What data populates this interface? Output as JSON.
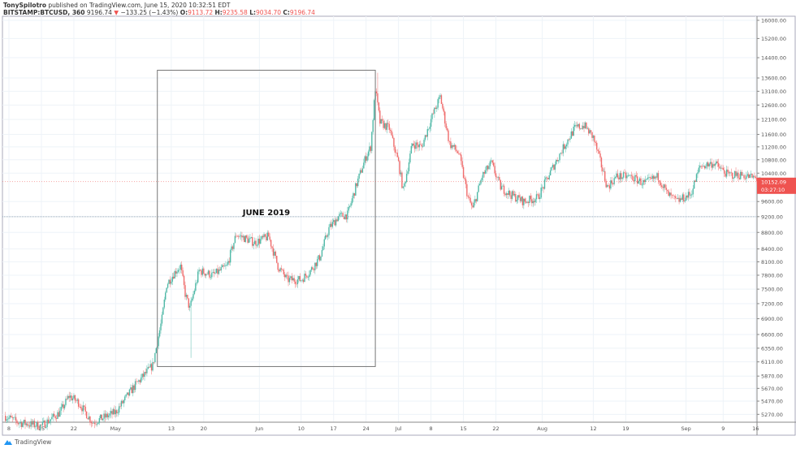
{
  "header": {
    "author": "TonySpilotro",
    "published": "published on TradingView.com, June 15, 2020 10:32:51 EDT",
    "symbol": "BITSTAMP:BTCUSD, 360",
    "last": "9196.74",
    "change": "−133.25 (−1.43%)",
    "open_label": "O:",
    "open": "9113.72",
    "high_label": "H:",
    "high": "9235.58",
    "low_label": "L:",
    "low": "9034.70",
    "close_label": "C:",
    "close": "9196.74"
  },
  "footer": {
    "brand": "TradingView"
  },
  "colors": {
    "up": "#4fb8a6",
    "down": "#ef6b6b",
    "price_tag": "#ef5350",
    "grid": "#eef3f8"
  },
  "chart_data": {
    "type": "candlestick",
    "scale": "log",
    "grid": true,
    "ylim": [
      5150,
      16300
    ],
    "xlim": [
      "2019-04-07",
      "2019-09-18"
    ],
    "y_ticks": [
      16000,
      15200,
      14400,
      13600,
      13100,
      12600,
      12100,
      11600,
      11200,
      10800,
      10400,
      9600,
      9200,
      8800,
      8400,
      8100,
      7800,
      7500,
      7200,
      6900,
      6600,
      6350,
      6110,
      5870,
      5670,
      5470,
      5270
    ],
    "y_tick_labels": [
      "16000.00",
      "15200.00",
      "14400.00",
      "13600.00",
      "13100.00",
      "12600.00",
      "12100.00",
      "11600.00",
      "11200.00",
      "10800.00",
      "10400.00",
      "9600.00",
      "9200.00",
      "8800.00",
      "8400.00",
      "8100.00",
      "7800.00",
      "7500.00",
      "7200.00",
      "6900.00",
      "6600.00",
      "6350.00",
      "6110.00",
      "5870.00",
      "5670.00",
      "5470.00",
      "5270.00"
    ],
    "x_ticks": [
      {
        "date": "2019-04-08",
        "label": "8"
      },
      {
        "date": "2019-04-15",
        "label": "15"
      },
      {
        "date": "2019-04-22",
        "label": "22"
      },
      {
        "date": "2019-05-01",
        "label": "May"
      },
      {
        "date": "2019-05-13",
        "label": "13"
      },
      {
        "date": "2019-05-20",
        "label": "20"
      },
      {
        "date": "2019-06-01",
        "label": "Jun"
      },
      {
        "date": "2019-06-10",
        "label": "10"
      },
      {
        "date": "2019-06-17",
        "label": "17"
      },
      {
        "date": "2019-06-24",
        "label": "24"
      },
      {
        "date": "2019-07-01",
        "label": "Jul"
      },
      {
        "date": "2019-07-08",
        "label": "8"
      },
      {
        "date": "2019-07-15",
        "label": "15"
      },
      {
        "date": "2019-07-22",
        "label": "22"
      },
      {
        "date": "2019-08-01",
        "label": "Aug"
      },
      {
        "date": "2019-08-12",
        "label": "12"
      },
      {
        "date": "2019-08-19",
        "label": "19"
      },
      {
        "date": "2019-09-01",
        "label": "Sep"
      },
      {
        "date": "2019-09-09",
        "label": "9"
      },
      {
        "date": "2019-09-16",
        "label": "16"
      }
    ],
    "price_path": [
      [
        "2019-04-07",
        5250
      ],
      [
        "2019-04-10",
        5150
      ],
      [
        "2019-04-15",
        5100
      ],
      [
        "2019-04-19",
        5300
      ],
      [
        "2019-04-21",
        5550
      ],
      [
        "2019-04-23",
        5450
      ],
      [
        "2019-04-26",
        5150
      ],
      [
        "2019-05-01",
        5300
      ],
      [
        "2019-05-05",
        5700
      ],
      [
        "2019-05-09",
        6050
      ],
      [
        "2019-05-11",
        6900
      ],
      [
        "2019-05-12",
        7600
      ],
      [
        "2019-05-14",
        7900
      ],
      [
        "2019-05-15",
        8000
      ],
      [
        "2019-05-16",
        7400
      ],
      [
        "2019-05-17",
        7100
      ],
      [
        "2019-05-19",
        7900
      ],
      [
        "2019-05-22",
        7800
      ],
      [
        "2019-05-25",
        8000
      ],
      [
        "2019-05-27",
        8750
      ],
      [
        "2019-05-31",
        8550
      ],
      [
        "2019-06-03",
        8700
      ],
      [
        "2019-06-05",
        8000
      ],
      [
        "2019-06-07",
        7700
      ],
      [
        "2019-06-10",
        7700
      ],
      [
        "2019-06-12",
        7900
      ],
      [
        "2019-06-14",
        8200
      ],
      [
        "2019-06-16",
        8900
      ],
      [
        "2019-06-18",
        9200
      ],
      [
        "2019-06-20",
        9250
      ],
      [
        "2019-06-22",
        10100
      ],
      [
        "2019-06-24",
        10900
      ],
      [
        "2019-06-25",
        11200
      ],
      [
        "2019-06-26",
        13200
      ],
      [
        "2019-06-27",
        12000
      ],
      [
        "2019-06-29",
        11800
      ],
      [
        "2019-07-01",
        10700
      ],
      [
        "2019-07-02",
        9900
      ],
      [
        "2019-07-04",
        11300
      ],
      [
        "2019-07-06",
        11200
      ],
      [
        "2019-07-08",
        12100
      ],
      [
        "2019-07-10",
        12900
      ],
      [
        "2019-07-12",
        11300
      ],
      [
        "2019-07-14",
        11000
      ],
      [
        "2019-07-16",
        9700
      ],
      [
        "2019-07-17",
        9400
      ],
      [
        "2019-07-19",
        10300
      ],
      [
        "2019-07-21",
        10700
      ],
      [
        "2019-07-23",
        10000
      ],
      [
        "2019-07-25",
        9800
      ],
      [
        "2019-07-28",
        9600
      ],
      [
        "2019-07-31",
        9700
      ],
      [
        "2019-08-03",
        10500
      ],
      [
        "2019-08-06",
        11300
      ],
      [
        "2019-08-08",
        11800
      ],
      [
        "2019-08-10",
        11900
      ],
      [
        "2019-08-12",
        11500
      ],
      [
        "2019-08-14",
        10500
      ],
      [
        "2019-08-15",
        10000
      ],
      [
        "2019-08-17",
        10300
      ],
      [
        "2019-08-20",
        10300
      ],
      [
        "2019-08-23",
        10100
      ],
      [
        "2019-08-26",
        10300
      ],
      [
        "2019-08-28",
        9800
      ],
      [
        "2019-08-30",
        9600
      ],
      [
        "2019-09-02",
        9800
      ],
      [
        "2019-09-04",
        10600
      ],
      [
        "2019-09-07",
        10700
      ],
      [
        "2019-09-10",
        10350
      ],
      [
        "2019-09-13",
        10350
      ],
      [
        "2019-09-16",
        10250
      ],
      [
        "2019-09-17",
        10152
      ]
    ],
    "last_price_label": "10152.09",
    "countdown_label": "03:27:10",
    "crosshair_price": 9200,
    "annotations": [
      {
        "type": "rectangle",
        "from": "2019-05-10",
        "to": "2019-06-26",
        "price_top": 13900,
        "price_bottom": 6030
      },
      {
        "type": "text",
        "text": "JUNE 2019"
      }
    ]
  }
}
